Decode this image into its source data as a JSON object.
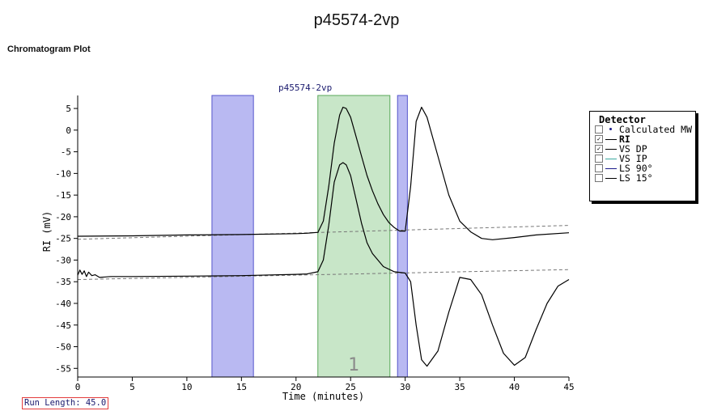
{
  "page": {
    "title": "p45574-2vp",
    "section_title": "Chromatogram Plot",
    "run_length": "Run Length: 45.0"
  },
  "chart_data": {
    "type": "line",
    "title": "p45574-2vp",
    "xlabel": "Time (minutes)",
    "ylabel": "RI (mV)",
    "xlim": [
      0,
      45
    ],
    "ylim": [
      -57,
      8
    ],
    "x_ticks": [
      0,
      5,
      10,
      15,
      20,
      25,
      30,
      35,
      40,
      45
    ],
    "y_ticks": [
      5,
      0,
      -5,
      -10,
      -15,
      -20,
      -25,
      -30,
      -35,
      -40,
      -45,
      -50,
      -55
    ],
    "grid": false,
    "legend_position": "right",
    "regions": [
      {
        "type": "baseline-window",
        "x": [
          12.3,
          16.1
        ],
        "color": "#b9b9f2"
      },
      {
        "type": "peak",
        "label": "1",
        "x": [
          22.0,
          28.6
        ],
        "color": "#c8e6c8"
      },
      {
        "type": "baseline-window",
        "x": [
          29.3,
          30.2
        ],
        "color": "#b9b9f2"
      }
    ],
    "series": [
      {
        "name": "RI",
        "color": "#000000",
        "x": [
          0,
          5,
          10,
          15,
          20,
          21,
          22,
          22.5,
          23,
          23.5,
          24,
          24.3,
          24.6,
          25,
          25.5,
          26,
          26.5,
          27,
          27.5,
          28,
          28.5,
          29,
          29.5,
          30,
          30.5,
          31,
          31.5,
          32,
          33,
          34,
          35,
          36,
          37,
          38,
          40,
          42,
          45
        ],
        "y": [
          -24.5,
          -24.4,
          -24.2,
          -24.1,
          -23.9,
          -23.8,
          -23.6,
          -21,
          -13,
          -3,
          3.5,
          5.3,
          5.0,
          3,
          -1.5,
          -6,
          -10.5,
          -14,
          -17,
          -19.5,
          -21.3,
          -22.5,
          -23.3,
          -23.3,
          -13,
          2,
          5.3,
          3,
          -6,
          -15,
          -21,
          -23.5,
          -25,
          -25.3,
          -24.8,
          -24.2,
          -23.7
        ]
      },
      {
        "name": "VS DP",
        "color": "#000000",
        "x": [
          0,
          0.2,
          0.4,
          0.6,
          0.8,
          1.0,
          1.3,
          1.6,
          2,
          3,
          5,
          10,
          15,
          20,
          21,
          22,
          22.5,
          23,
          23.5,
          24,
          24.3,
          24.6,
          25,
          25.5,
          26,
          26.5,
          27,
          28,
          29,
          30,
          30.5,
          31,
          31.5,
          32,
          33,
          34,
          35,
          36,
          37,
          38,
          39,
          40,
          41,
          42,
          43,
          44,
          45
        ],
        "y": [
          -33.5,
          -32.3,
          -33.3,
          -32.5,
          -33.8,
          -32.8,
          -33.6,
          -33.4,
          -34,
          -33.8,
          -33.8,
          -33.7,
          -33.6,
          -33.3,
          -33.2,
          -32.7,
          -30,
          -22,
          -12,
          -8,
          -7.5,
          -8,
          -10.5,
          -16,
          -21.5,
          -26,
          -28.5,
          -31.5,
          -32.7,
          -33,
          -35,
          -45,
          -53,
          -54.5,
          -51,
          -42,
          -34,
          -34.5,
          -38,
          -45,
          -51.5,
          -54.3,
          -52.5,
          -46,
          -40,
          -36,
          -34.5
        ]
      }
    ],
    "baselines": [
      {
        "name": "RI baseline",
        "x": [
          0,
          45
        ],
        "y": [
          -25.2,
          -22
        ]
      },
      {
        "name": "VS DP baseline",
        "x": [
          0,
          45
        ],
        "y": [
          -34.5,
          -32.2
        ]
      }
    ],
    "legend": {
      "title": "Detector",
      "items": [
        {
          "label": "Calculated MW",
          "checked": false,
          "symbol": "dot",
          "color": "#1a1a8a",
          "bold": false
        },
        {
          "label": "RI",
          "checked": true,
          "symbol": "line",
          "color": "#000000",
          "bold": true
        },
        {
          "label": "VS DP",
          "checked": true,
          "symbol": "line",
          "color": "#000000",
          "bold": false
        },
        {
          "label": "VS IP",
          "checked": false,
          "symbol": "line",
          "color": "#3aa8a0",
          "bold": false
        },
        {
          "label": "LS 90°",
          "checked": false,
          "symbol": "line",
          "color": "#1a1a8a",
          "bold": false
        },
        {
          "label": "LS 15°",
          "checked": false,
          "symbol": "line",
          "color": "#000000",
          "bold": false
        }
      ]
    }
  }
}
